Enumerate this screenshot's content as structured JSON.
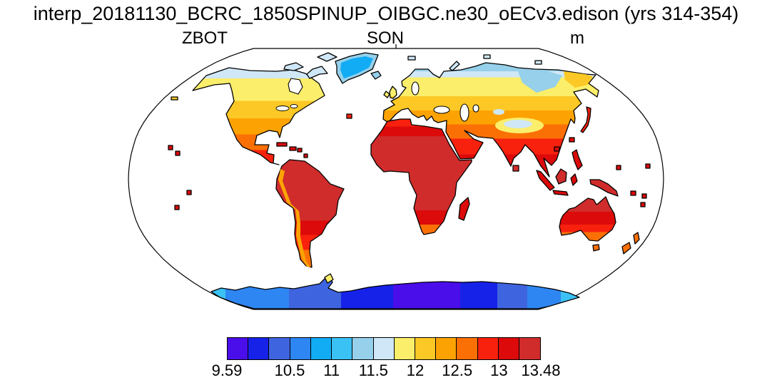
{
  "title": "interp_20181130_BCRC_1850SPINUP_OIBGC.ne30_oECv3.edison (yrs 314-354)",
  "labels": {
    "variable": "ZBOT",
    "season": "SON",
    "units": "m"
  },
  "chart_data": {
    "type": "heatmap",
    "subtype": "global-map",
    "projection": "robinson",
    "title": "interp_20181130_BCRC_1850SPINUP_OIBGC.ne30_oECv3.edison (yrs 314-354)",
    "variable": "ZBOT",
    "season": "SON",
    "units": "m",
    "value_min": 9.59,
    "value_max": 13.48,
    "levels": [
      9.59,
      10,
      10.25,
      10.5,
      10.75,
      11,
      11.25,
      11.5,
      11.75,
      12,
      12.25,
      12.5,
      12.75,
      13,
      13.25,
      13.48
    ],
    "tick_values": [
      9.59,
      10.5,
      11,
      11.5,
      12,
      12.5,
      13,
      13.48
    ],
    "tick_labels": [
      "9.59",
      "10.5",
      "11",
      "11.5",
      "12",
      "12.5",
      "13",
      "13.48"
    ],
    "palette": [
      "#4A0EEA",
      "#1722E8",
      "#3F64DF",
      "#2E86F2",
      "#12ACF5",
      "#3BC2F5",
      "#96D0EA",
      "#CFE7F7",
      "#FBEE6B",
      "#FCC825",
      "#FCA303",
      "#FB7005",
      "#F8210E",
      "#DC0A0A",
      "#D02C2C"
    ],
    "ocean_color": "#FFFFFF",
    "legend_position": "bottom",
    "regions": [
      {
        "name": "Greenland",
        "approx_value": 11.1
      },
      {
        "name": "Canadian Arctic islands",
        "approx_value": 11.6
      },
      {
        "name": "Northern Canada",
        "approx_value": 11.9
      },
      {
        "name": "Central North America",
        "approx_value": 12.4
      },
      {
        "name": "Southern United States",
        "approx_value": 12.9
      },
      {
        "name": "Mexico and Central America",
        "approx_value": 13.3
      },
      {
        "name": "Tropical South America",
        "approx_value": 13.4
      },
      {
        "name": "Andes",
        "approx_value": 12.4
      },
      {
        "name": "Patagonia",
        "approx_value": 12.7
      },
      {
        "name": "Sahara and tropical Africa",
        "approx_value": 13.4
      },
      {
        "name": "Southern Africa tip",
        "approx_value": 12.7
      },
      {
        "name": "Europe",
        "approx_value": 12.4
      },
      {
        "name": "Scandinavia",
        "approx_value": 12.1
      },
      {
        "name": "Northern Siberia coast",
        "approx_value": 11.4
      },
      {
        "name": "Central Russia",
        "approx_value": 12.0
      },
      {
        "name": "Tibetan Plateau",
        "approx_value": 11.5
      },
      {
        "name": "Middle East and India",
        "approx_value": 13.4
      },
      {
        "name": "China",
        "approx_value": 12.8
      },
      {
        "name": "Southeast Asia and Indonesia",
        "approx_value": 13.4
      },
      {
        "name": "Northern Australia",
        "approx_value": 13.4
      },
      {
        "name": "Southern Australia",
        "approx_value": 12.7
      },
      {
        "name": "New Zealand",
        "approx_value": 12.5
      },
      {
        "name": "Antarctic coast",
        "approx_value": 10.9
      },
      {
        "name": "East Antarctica interior",
        "approx_value": 9.9
      },
      {
        "name": "Ocean",
        "approx_value": null
      }
    ]
  }
}
